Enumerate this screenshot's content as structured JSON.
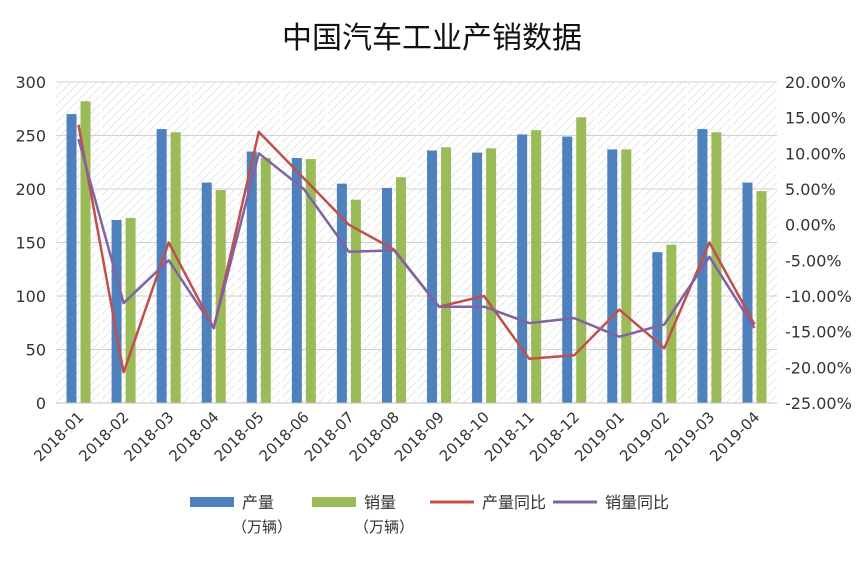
{
  "chart_data": {
    "type": "bar",
    "title": "中国汽车工业产销数据",
    "categories": [
      "2018-01",
      "2018-02",
      "2018-03",
      "2018-04",
      "2018-05",
      "2018-06",
      "2018-07",
      "2018-08",
      "2018-09",
      "2018-10",
      "2018-11",
      "2018-12",
      "2019-01",
      "2019-02",
      "2019-03",
      "2019-04"
    ],
    "ylim": [
      0,
      300
    ],
    "yticks": [
      0,
      50,
      100,
      150,
      200,
      250,
      300
    ],
    "y2lim": [
      -0.25,
      0.2
    ],
    "y2ticks": [
      "-25.00%",
      "-20.00%",
      "-15.00%",
      "-10.00%",
      "-5.00%",
      "0.00%",
      "5.00%",
      "10.00%",
      "15.00%",
      "20.00%"
    ],
    "grid": true,
    "legend_position": "bottom",
    "series": [
      {
        "name": "产量",
        "unit": "（万辆）",
        "kind": "bar",
        "axis": "left",
        "color": "#4f81bd",
        "values": [
          270,
          171,
          256,
          206,
          235,
          229,
          205,
          201,
          236,
          234,
          251,
          249,
          237,
          141,
          256,
          206
        ]
      },
      {
        "name": "销量",
        "unit": "（万辆）",
        "kind": "bar",
        "axis": "left",
        "color": "#9bbb59",
        "values": [
          282,
          173,
          253,
          199,
          229,
          228,
          190,
          211,
          239,
          238,
          255,
          267,
          237,
          148,
          253,
          198
        ]
      },
      {
        "name": "产量同比",
        "kind": "line",
        "axis": "right",
        "color": "#c0504d",
        "values": [
          0.14,
          -0.207,
          -0.025,
          -0.145,
          0.13,
          0.065,
          0.0,
          -0.035,
          -0.115,
          -0.1,
          -0.188,
          -0.183,
          -0.119,
          -0.173,
          -0.025,
          -0.14
        ]
      },
      {
        "name": "销量同比",
        "kind": "line",
        "axis": "right",
        "color": "#8064a2",
        "values": [
          0.12,
          -0.11,
          -0.05,
          -0.145,
          0.1,
          0.05,
          -0.038,
          -0.036,
          -0.115,
          -0.115,
          -0.138,
          -0.131,
          -0.157,
          -0.14,
          -0.045,
          -0.145
        ]
      }
    ]
  }
}
